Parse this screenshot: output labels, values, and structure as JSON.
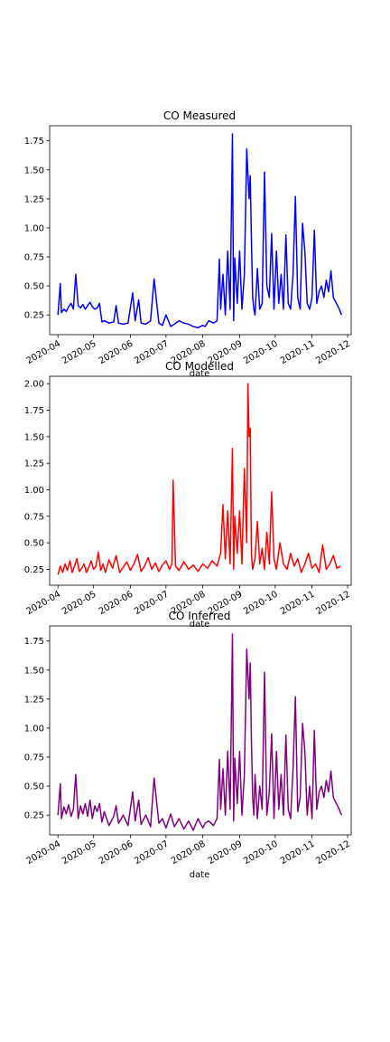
{
  "chart_data": [
    {
      "type": "line",
      "title": "CO Measured",
      "xlabel": "date",
      "ylabel": "",
      "color": "#0000ff",
      "xlim": [
        "2020-03-25",
        "2020-12-04"
      ],
      "ylim": [
        0.08,
        1.88
      ],
      "xticks": [
        "2020-04",
        "2020-05",
        "2020-06",
        "2020-07",
        "2020-08",
        "2020-09",
        "2020-10",
        "2020-11",
        "2020-12"
      ],
      "yticks": [
        "0.25",
        "0.50",
        "0.75",
        "1.00",
        "1.25",
        "1.50",
        "1.75"
      ],
      "grid": false,
      "series": [
        {
          "x": [
            "2020-04-01",
            "2020-04-03",
            "2020-04-04",
            "2020-04-06",
            "2020-04-08",
            "2020-04-10",
            "2020-04-12",
            "2020-04-14",
            "2020-04-16",
            "2020-04-18",
            "2020-04-20",
            "2020-04-22",
            "2020-04-24",
            "2020-04-26",
            "2020-04-28",
            "2020-04-30",
            "2020-05-02",
            "2020-05-04",
            "2020-05-06",
            "2020-05-08",
            "2020-05-10",
            "2020-05-14",
            "2020-05-18",
            "2020-05-20",
            "2020-05-22",
            "2020-05-26",
            "2020-05-30",
            "2020-06-03",
            "2020-06-05",
            "2020-06-08",
            "2020-06-10",
            "2020-06-14",
            "2020-06-18",
            "2020-06-21",
            "2020-06-25",
            "2020-06-28",
            "2020-07-01",
            "2020-07-05",
            "2020-07-08",
            "2020-07-12",
            "2020-07-16",
            "2020-07-20",
            "2020-07-24",
            "2020-07-28",
            "2020-08-01",
            "2020-08-03",
            "2020-08-06",
            "2020-08-10",
            "2020-08-13",
            "2020-08-15",
            "2020-08-16",
            "2020-08-18",
            "2020-08-20",
            "2020-08-22",
            "2020-08-24",
            "2020-08-26",
            "2020-08-27",
            "2020-08-28",
            "2020-08-30",
            "2020-09-01",
            "2020-09-03",
            "2020-09-05",
            "2020-09-07",
            "2020-09-09",
            "2020-09-10",
            "2020-09-11",
            "2020-09-12",
            "2020-09-13",
            "2020-09-14",
            "2020-09-16",
            "2020-09-18",
            "2020-09-20",
            "2020-09-22",
            "2020-09-24",
            "2020-09-26",
            "2020-09-28",
            "2020-09-30",
            "2020-10-02",
            "2020-10-04",
            "2020-10-06",
            "2020-10-08",
            "2020-10-10",
            "2020-10-12",
            "2020-10-14",
            "2020-10-16",
            "2020-10-18",
            "2020-10-20",
            "2020-10-22",
            "2020-10-24",
            "2020-10-26",
            "2020-10-28",
            "2020-10-30",
            "2020-11-01",
            "2020-11-03",
            "2020-11-05",
            "2020-11-07",
            "2020-11-09",
            "2020-11-11",
            "2020-11-13",
            "2020-11-15",
            "2020-11-17",
            "2020-11-19",
            "2020-11-24",
            "2020-11-25",
            "2020-11-26"
          ],
          "y": [
            0.25,
            0.52,
            0.27,
            0.3,
            0.28,
            0.32,
            0.35,
            0.3,
            0.6,
            0.33,
            0.31,
            0.34,
            0.3,
            0.33,
            0.36,
            0.32,
            0.3,
            0.31,
            0.35,
            0.19,
            0.2,
            0.18,
            0.19,
            0.33,
            0.18,
            0.17,
            0.18,
            0.44,
            0.2,
            0.38,
            0.18,
            0.17,
            0.2,
            0.56,
            0.18,
            0.16,
            0.25,
            0.15,
            0.17,
            0.2,
            0.18,
            0.17,
            0.15,
            0.14,
            0.16,
            0.15,
            0.2,
            0.18,
            0.2,
            0.73,
            0.3,
            0.6,
            0.25,
            0.8,
            0.3,
            1.81,
            0.2,
            0.74,
            0.35,
            0.8,
            0.3,
            0.6,
            1.68,
            1.25,
            1.45,
            0.9,
            0.4,
            0.3,
            0.25,
            0.65,
            0.3,
            0.35,
            1.48,
            0.5,
            0.4,
            0.95,
            0.3,
            0.8,
            0.35,
            0.6,
            0.3,
            0.94,
            0.35,
            0.3,
            0.6,
            1.27,
            0.4,
            0.3,
            1.04,
            0.8,
            0.35,
            0.3,
            0.4,
            0.98,
            0.35,
            0.45,
            0.5,
            0.4,
            0.55,
            0.45,
            0.63,
            0.4,
            0.3,
            0.27,
            0.25
          ]
        }
      ]
    },
    {
      "type": "line",
      "title": "CO Modelled",
      "xlabel": "date",
      "ylabel": "",
      "color": "#ff0000",
      "xlim": [
        "2020-03-25",
        "2020-12-04"
      ],
      "ylim": [
        0.1,
        2.07
      ],
      "xticks": [
        "2020-04",
        "2020-05",
        "2020-06",
        "2020-07",
        "2020-08",
        "2020-09",
        "2020-10",
        "2020-11",
        "2020-12"
      ],
      "yticks": [
        "0.25",
        "0.50",
        "0.75",
        "1.00",
        "1.25",
        "1.50",
        "1.75",
        "2.00"
      ],
      "grid": false,
      "series": [
        {
          "x": [
            "2020-04-01",
            "2020-04-03",
            "2020-04-05",
            "2020-04-07",
            "2020-04-09",
            "2020-04-11",
            "2020-04-13",
            "2020-04-15",
            "2020-04-17",
            "2020-04-19",
            "2020-04-21",
            "2020-04-23",
            "2020-04-25",
            "2020-04-27",
            "2020-04-29",
            "2020-05-01",
            "2020-05-03",
            "2020-05-05",
            "2020-05-07",
            "2020-05-09",
            "2020-05-11",
            "2020-05-14",
            "2020-05-17",
            "2020-05-20",
            "2020-05-23",
            "2020-05-26",
            "2020-05-29",
            "2020-06-01",
            "2020-06-04",
            "2020-06-07",
            "2020-06-10",
            "2020-06-13",
            "2020-06-16",
            "2020-06-19",
            "2020-06-22",
            "2020-06-25",
            "2020-06-28",
            "2020-07-01",
            "2020-07-04",
            "2020-07-06",
            "2020-07-07",
            "2020-07-09",
            "2020-07-12",
            "2020-07-16",
            "2020-07-20",
            "2020-07-24",
            "2020-07-28",
            "2020-08-01",
            "2020-08-05",
            "2020-08-09",
            "2020-08-13",
            "2020-08-16",
            "2020-08-18",
            "2020-08-20",
            "2020-08-22",
            "2020-08-24",
            "2020-08-26",
            "2020-08-27",
            "2020-08-28",
            "2020-08-30",
            "2020-09-01",
            "2020-09-03",
            "2020-09-05",
            "2020-09-07",
            "2020-09-08",
            "2020-09-09",
            "2020-09-10",
            "2020-09-11",
            "2020-09-12",
            "2020-09-14",
            "2020-09-16",
            "2020-09-18",
            "2020-09-20",
            "2020-09-22",
            "2020-09-24",
            "2020-09-26",
            "2020-09-28",
            "2020-09-30",
            "2020-10-02",
            "2020-10-05",
            "2020-10-08",
            "2020-10-11",
            "2020-10-14",
            "2020-10-17",
            "2020-10-20",
            "2020-10-23",
            "2020-10-26",
            "2020-10-29",
            "2020-11-01",
            "2020-11-04",
            "2020-11-07",
            "2020-11-10",
            "2020-11-13",
            "2020-11-16",
            "2020-11-19",
            "2020-11-22",
            "2020-11-25"
          ],
          "y": [
            0.2,
            0.28,
            0.22,
            0.3,
            0.24,
            0.33,
            0.22,
            0.28,
            0.35,
            0.23,
            0.26,
            0.3,
            0.22,
            0.27,
            0.33,
            0.25,
            0.28,
            0.41,
            0.24,
            0.3,
            0.22,
            0.34,
            0.26,
            0.38,
            0.22,
            0.27,
            0.32,
            0.24,
            0.3,
            0.39,
            0.23,
            0.28,
            0.36,
            0.25,
            0.31,
            0.23,
            0.29,
            0.33,
            0.25,
            0.3,
            1.09,
            0.28,
            0.24,
            0.32,
            0.25,
            0.29,
            0.23,
            0.3,
            0.26,
            0.33,
            0.28,
            0.4,
            0.86,
            0.35,
            0.8,
            0.3,
            1.39,
            0.25,
            0.75,
            0.4,
            0.8,
            0.3,
            1.2,
            0.5,
            2.0,
            1.5,
            1.58,
            0.4,
            0.25,
            0.35,
            0.7,
            0.3,
            0.45,
            0.25,
            0.6,
            0.3,
            0.98,
            0.35,
            0.25,
            0.5,
            0.3,
            0.25,
            0.4,
            0.28,
            0.35,
            0.22,
            0.3,
            0.4,
            0.26,
            0.3,
            0.22,
            0.48,
            0.25,
            0.3,
            0.38,
            0.26,
            0.28
          ]
        }
      ]
    },
    {
      "type": "line",
      "title": "CO Inferred",
      "xlabel": "date",
      "ylabel": "",
      "color": "#800080",
      "xlim": [
        "2020-03-25",
        "2020-12-04"
      ],
      "ylim": [
        0.08,
        1.88
      ],
      "xticks": [
        "2020-04",
        "2020-05",
        "2020-06",
        "2020-07",
        "2020-08",
        "2020-09",
        "2020-10",
        "2020-11",
        "2020-12"
      ],
      "yticks": [
        "0.25",
        "0.50",
        "0.75",
        "1.00",
        "1.25",
        "1.50",
        "1.75"
      ],
      "grid": false,
      "series": [
        {
          "x": [
            "2020-04-01",
            "2020-04-03",
            "2020-04-04",
            "2020-04-06",
            "2020-04-08",
            "2020-04-10",
            "2020-04-12",
            "2020-04-14",
            "2020-04-16",
            "2020-04-18",
            "2020-04-20",
            "2020-04-22",
            "2020-04-24",
            "2020-04-26",
            "2020-04-28",
            "2020-04-30",
            "2020-05-02",
            "2020-05-04",
            "2020-05-06",
            "2020-05-08",
            "2020-05-10",
            "2020-05-14",
            "2020-05-18",
            "2020-05-20",
            "2020-05-22",
            "2020-05-26",
            "2020-05-30",
            "2020-06-03",
            "2020-06-05",
            "2020-06-08",
            "2020-06-10",
            "2020-06-14",
            "2020-06-18",
            "2020-06-21",
            "2020-06-25",
            "2020-06-28",
            "2020-07-01",
            "2020-07-05",
            "2020-07-08",
            "2020-07-12",
            "2020-07-16",
            "2020-07-20",
            "2020-07-24",
            "2020-07-28",
            "2020-08-01",
            "2020-08-03",
            "2020-08-06",
            "2020-08-10",
            "2020-08-13",
            "2020-08-15",
            "2020-08-16",
            "2020-08-18",
            "2020-08-20",
            "2020-08-22",
            "2020-08-24",
            "2020-08-26",
            "2020-08-27",
            "2020-08-28",
            "2020-08-30",
            "2020-09-01",
            "2020-09-03",
            "2020-09-05",
            "2020-09-07",
            "2020-09-09",
            "2020-09-10",
            "2020-09-11",
            "2020-09-12",
            "2020-09-13",
            "2020-09-14",
            "2020-09-16",
            "2020-09-18",
            "2020-09-20",
            "2020-09-22",
            "2020-09-24",
            "2020-09-26",
            "2020-09-28",
            "2020-09-30",
            "2020-10-02",
            "2020-10-04",
            "2020-10-06",
            "2020-10-08",
            "2020-10-10",
            "2020-10-12",
            "2020-10-14",
            "2020-10-16",
            "2020-10-18",
            "2020-10-20",
            "2020-10-22",
            "2020-10-24",
            "2020-10-26",
            "2020-10-28",
            "2020-10-30",
            "2020-11-01",
            "2020-11-03",
            "2020-11-05",
            "2020-11-07",
            "2020-11-09",
            "2020-11-11",
            "2020-11-13",
            "2020-11-15",
            "2020-11-17",
            "2020-11-19",
            "2020-11-24",
            "2020-11-25",
            "2020-11-26"
          ],
          "y": [
            0.25,
            0.52,
            0.22,
            0.32,
            0.26,
            0.34,
            0.24,
            0.3,
            0.6,
            0.22,
            0.33,
            0.26,
            0.35,
            0.24,
            0.38,
            0.22,
            0.33,
            0.28,
            0.35,
            0.19,
            0.28,
            0.16,
            0.24,
            0.33,
            0.18,
            0.25,
            0.16,
            0.45,
            0.2,
            0.38,
            0.17,
            0.25,
            0.15,
            0.57,
            0.18,
            0.22,
            0.14,
            0.26,
            0.15,
            0.22,
            0.13,
            0.2,
            0.12,
            0.22,
            0.14,
            0.18,
            0.2,
            0.16,
            0.22,
            0.73,
            0.3,
            0.65,
            0.25,
            0.8,
            0.3,
            1.81,
            0.2,
            0.74,
            0.35,
            0.8,
            0.25,
            0.6,
            1.68,
            1.25,
            1.56,
            0.9,
            0.4,
            0.25,
            0.6,
            0.22,
            0.5,
            0.3,
            1.48,
            0.25,
            0.45,
            0.95,
            0.22,
            0.8,
            0.3,
            0.6,
            0.25,
            0.94,
            0.3,
            0.22,
            0.65,
            1.27,
            0.28,
            0.4,
            1.04,
            0.8,
            0.25,
            0.5,
            0.22,
            0.98,
            0.3,
            0.45,
            0.5,
            0.4,
            0.55,
            0.45,
            0.63,
            0.4,
            0.3,
            0.27,
            0.25
          ]
        }
      ]
    }
  ]
}
